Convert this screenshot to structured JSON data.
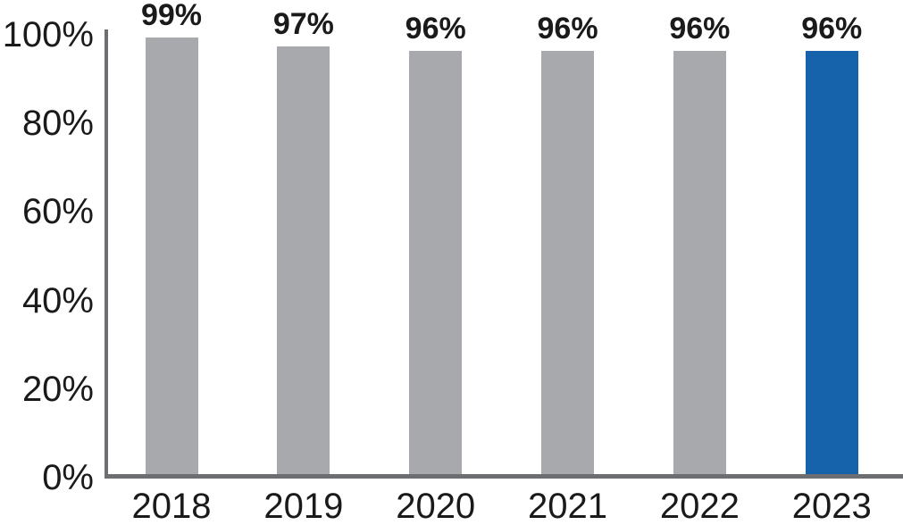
{
  "chart_data": {
    "type": "bar",
    "categories": [
      "2018",
      "2019",
      "2020",
      "2021",
      "2022",
      "2023"
    ],
    "values": [
      99,
      97,
      96,
      96,
      96,
      96
    ],
    "bar_labels": [
      "99%",
      "97%",
      "96%",
      "96%",
      "96%",
      "96%"
    ],
    "title": "",
    "xlabel": "",
    "ylabel": "",
    "ylim": [
      0,
      100
    ],
    "y_tick_values": [
      100,
      80,
      60,
      40,
      20,
      0
    ],
    "y_tick_labels": [
      "100%",
      "80%",
      "60%",
      "40%",
      "20%",
      "0%"
    ],
    "grid": "off",
    "legend": "none",
    "colors": {
      "bar_default": "#A7A9AC",
      "bar_highlight": "#1663AC",
      "highlight_index": 5,
      "axis_line": "#6D6E71",
      "text": "#1A1A1A"
    }
  }
}
